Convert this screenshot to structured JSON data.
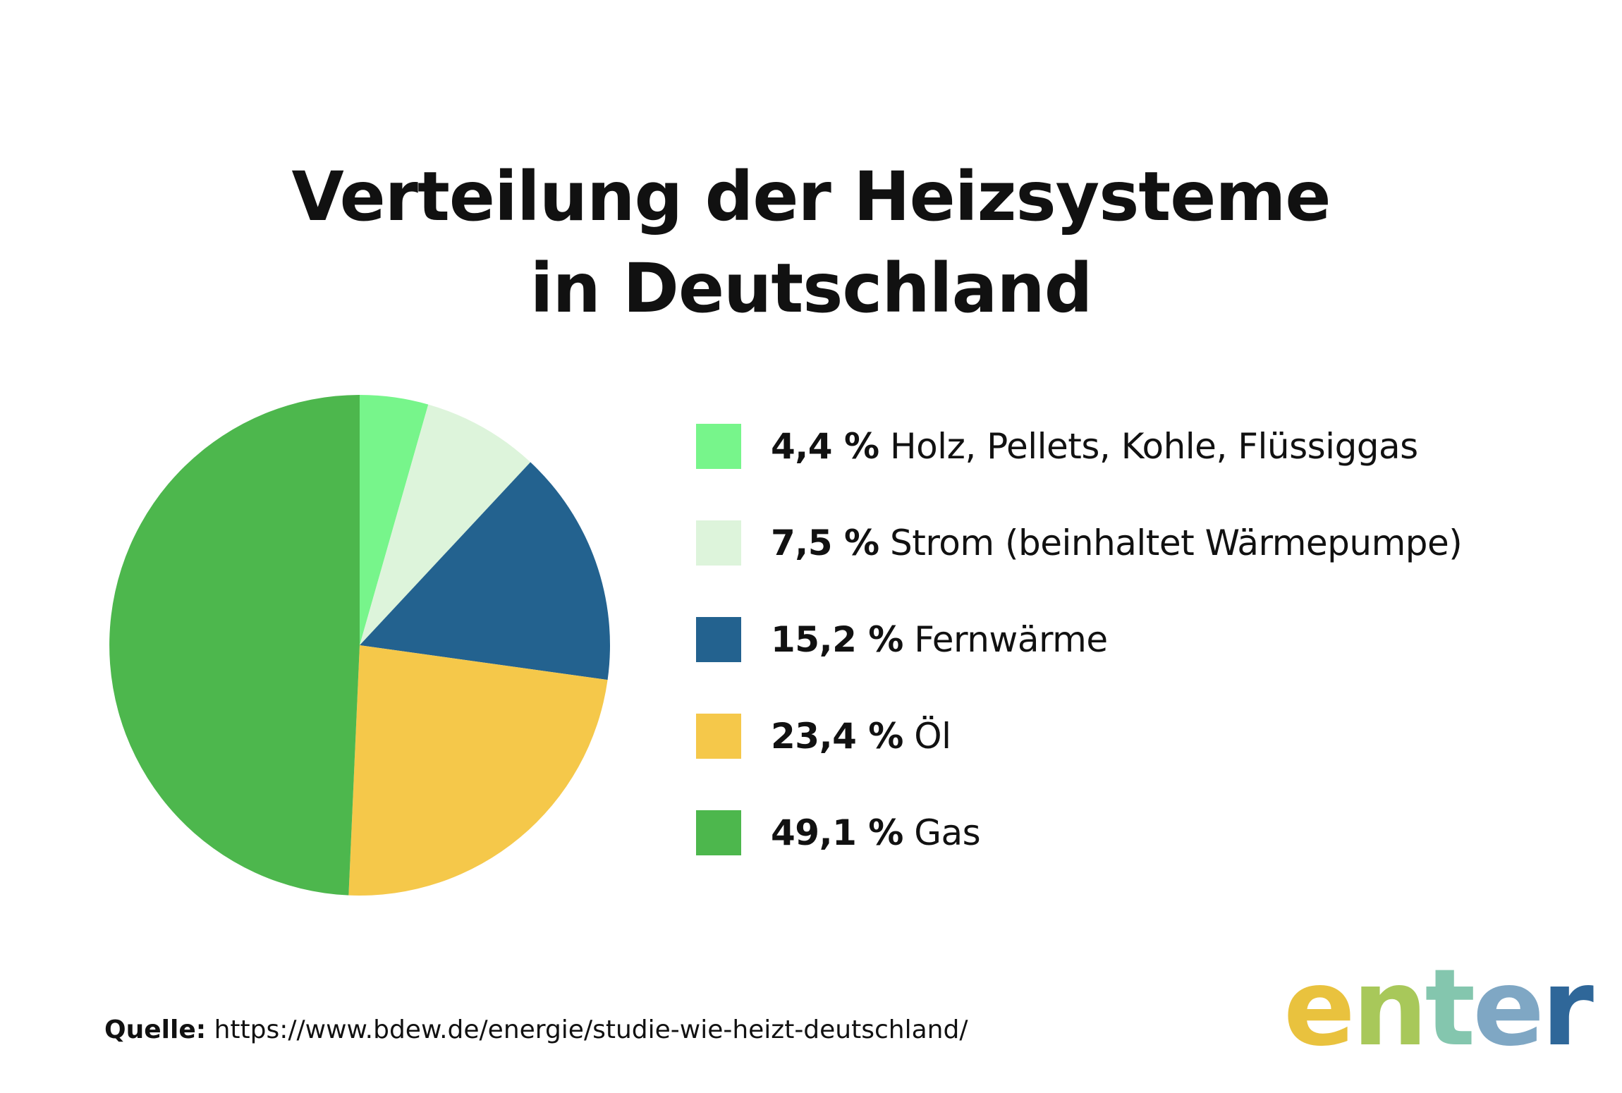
{
  "title": {
    "line1": "Verteilung der Heizsysteme",
    "line2": "in Deutschland"
  },
  "chart_data": {
    "type": "pie",
    "unit": "%",
    "slices": [
      {
        "label": "Holz, Pellets, Kohle, Flüssiggas",
        "value": 4.4,
        "value_text": "4,4 %",
        "color": "#77F58B"
      },
      {
        "label": "Strom (beinhaltet Wärmepumpe)",
        "value": 7.5,
        "value_text": "7,5 %",
        "color": "#DDF4DB"
      },
      {
        "label": "Fernwärme",
        "value": 15.2,
        "value_text": "15,2 %",
        "color": "#23628F"
      },
      {
        "label": "Öl",
        "value": 23.4,
        "value_text": "23,4 %",
        "color": "#F5C84A"
      },
      {
        "label": "Gas",
        "value": 49.1,
        "value_text": "49,1 %",
        "color": "#4DB74D"
      }
    ],
    "legend_position": "right",
    "start_angle": "top (12 o'clock), clockwise"
  },
  "source": {
    "label": "Quelle:",
    "url": "https://www.bdew.de/energie/studie-wie-heizt-deutschland/"
  },
  "logo": {
    "letters": [
      {
        "char": "e",
        "color": "#E9C23E"
      },
      {
        "char": "n",
        "color": "#A8C85A"
      },
      {
        "char": "t",
        "color": "#84C6AE"
      },
      {
        "char": "e",
        "color": "#7FA7C4"
      },
      {
        "char": "r",
        "color": "#2F6799"
      }
    ]
  }
}
